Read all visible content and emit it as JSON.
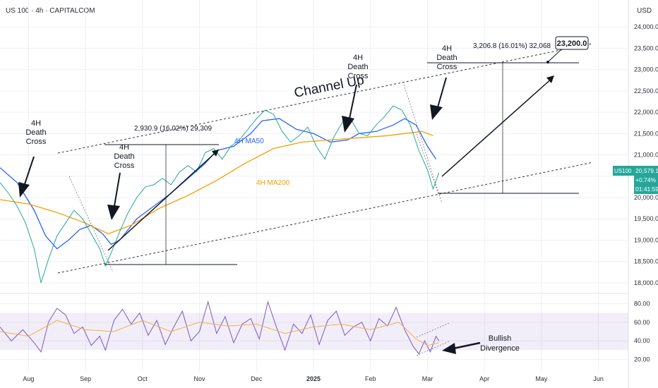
{
  "header": {
    "symbol_line": "US 100 · 4h · CAPITALCOM",
    "currency": "USD"
  },
  "price_tag": {
    "ticker": "US100",
    "price": "20,579.1",
    "change": "+0.74%",
    "countdown": "01:41:59"
  },
  "chart_data": [
    {
      "type": "line",
      "panel": "price",
      "y_ticks": [
        "24,000.0",
        "23,500.0",
        "23,000.0",
        "22,500.0",
        "22,000.0",
        "21,500.0",
        "21,000.0",
        "20,500.0",
        "20,000.0",
        "19,500.0",
        "19,000.0",
        "18,500.0",
        "18,000.0"
      ],
      "y_tick_values": [
        24000,
        23500,
        23000,
        22500,
        22000,
        21500,
        21000,
        20500,
        20000,
        19500,
        19000,
        18500,
        18000
      ],
      "ylim": [
        17850,
        24300
      ],
      "x_ticks": [
        "Aug",
        "Sep",
        "Oct",
        "Nov",
        "Dec",
        "2025",
        "Feb",
        "Mar",
        "Apr",
        "May",
        "Jun"
      ],
      "x_tick_index": [
        0.5,
        1.5,
        2.5,
        3.5,
        4.5,
        5.5,
        6.5,
        7.5,
        8.5,
        9.5,
        10.5
      ],
      "xlim": [
        0,
        11
      ],
      "series": [
        {
          "name": "4H MA50",
          "color": "#2962ff",
          "points": [
            [
              0,
              20700
            ],
            [
              0.3,
              20350
            ],
            [
              0.6,
              19700
            ],
            [
              0.8,
              19100
            ],
            [
              1.0,
              18800
            ],
            [
              1.2,
              19000
            ],
            [
              1.4,
              19250
            ],
            [
              1.6,
              19350
            ],
            [
              1.8,
              19150
            ],
            [
              1.95,
              18900
            ],
            [
              2.1,
              19000
            ],
            [
              2.4,
              19500
            ],
            [
              2.7,
              19800
            ],
            [
              3.0,
              20100
            ],
            [
              3.3,
              20450
            ],
            [
              3.6,
              20800
            ],
            [
              3.8,
              21100
            ],
            [
              4.1,
              21200
            ],
            [
              4.4,
              21500
            ],
            [
              4.6,
              21800
            ],
            [
              4.9,
              21850
            ],
            [
              5.2,
              21600
            ],
            [
              5.5,
              21500
            ],
            [
              5.8,
              21300
            ],
            [
              6.1,
              21350
            ],
            [
              6.3,
              21500
            ],
            [
              6.6,
              21550
            ],
            [
              6.9,
              21700
            ],
            [
              7.1,
              21850
            ],
            [
              7.3,
              21700
            ],
            [
              7.5,
              21200
            ],
            [
              7.65,
              20900
            ]
          ]
        },
        {
          "name": "4H MA200",
          "color": "#f59f00",
          "points": [
            [
              0,
              19950
            ],
            [
              0.5,
              19850
            ],
            [
              1.0,
              19650
            ],
            [
              1.5,
              19400
            ],
            [
              1.9,
              19150
            ],
            [
              2.3,
              19350
            ],
            [
              2.8,
              19750
            ],
            [
              3.3,
              20050
            ],
            [
              3.8,
              20400
            ],
            [
              4.3,
              20800
            ],
            [
              4.8,
              21150
            ],
            [
              5.3,
              21300
            ],
            [
              5.8,
              21350
            ],
            [
              6.3,
              21400
            ],
            [
              6.8,
              21450
            ],
            [
              7.1,
              21500
            ],
            [
              7.4,
              21550
            ],
            [
              7.6,
              21450
            ]
          ]
        },
        {
          "name": "Price",
          "color": "#26a69a",
          "points": [
            [
              0,
              20350
            ],
            [
              0.15,
              20100
            ],
            [
              0.3,
              19800
            ],
            [
              0.45,
              19400
            ],
            [
              0.6,
              18800
            ],
            [
              0.72,
              18000
            ],
            [
              0.85,
              18550
            ],
            [
              1.0,
              19100
            ],
            [
              1.15,
              19400
            ],
            [
              1.3,
              19700
            ],
            [
              1.45,
              19500
            ],
            [
              1.6,
              19150
            ],
            [
              1.75,
              18800
            ],
            [
              1.85,
              18400
            ],
            [
              1.95,
              18700
            ],
            [
              2.1,
              19200
            ],
            [
              2.25,
              19650
            ],
            [
              2.4,
              20000
            ],
            [
              2.55,
              20250
            ],
            [
              2.7,
              20300
            ],
            [
              2.85,
              20450
            ],
            [
              3.0,
              20300
            ],
            [
              3.15,
              20600
            ],
            [
              3.3,
              20750
            ],
            [
              3.45,
              20600
            ],
            [
              3.6,
              21050
            ],
            [
              3.75,
              21150
            ],
            [
              3.9,
              20900
            ],
            [
              4.05,
              21200
            ],
            [
              4.2,
              21350
            ],
            [
              4.35,
              21600
            ],
            [
              4.5,
              21850
            ],
            [
              4.65,
              22050
            ],
            [
              4.8,
              21950
            ],
            [
              4.95,
              21550
            ],
            [
              5.1,
              21300
            ],
            [
              5.25,
              21450
            ],
            [
              5.4,
              21650
            ],
            [
              5.55,
              21200
            ],
            [
              5.7,
              20900
            ],
            [
              5.85,
              21400
            ],
            [
              6.0,
              21750
            ],
            [
              6.15,
              21850
            ],
            [
              6.3,
              21500
            ],
            [
              6.45,
              21450
            ],
            [
              6.6,
              21700
            ],
            [
              6.75,
              21900
            ],
            [
              6.9,
              22150
            ],
            [
              7.05,
              22050
            ],
            [
              7.2,
              21700
            ],
            [
              7.35,
              21100
            ],
            [
              7.5,
              20650
            ],
            [
              7.6,
              20200
            ],
            [
              7.7,
              20580
            ]
          ]
        }
      ]
    },
    {
      "type": "line",
      "panel": "rsi",
      "y_ticks": [
        "80.00",
        "60.00",
        "40.00",
        "20.00"
      ],
      "y_tick_values": [
        80,
        60,
        40,
        20
      ],
      "ylim": [
        12,
        88
      ],
      "band": [
        30,
        70
      ],
      "series": [
        {
          "name": "RSI",
          "color": "#7e57c2",
          "points": [
            [
              0,
              55
            ],
            [
              0.2,
              40
            ],
            [
              0.4,
              52
            ],
            [
              0.6,
              38
            ],
            [
              0.72,
              28
            ],
            [
              0.85,
              60
            ],
            [
              1.0,
              75
            ],
            [
              1.15,
              68
            ],
            [
              1.3,
              48
            ],
            [
              1.45,
              55
            ],
            [
              1.6,
              35
            ],
            [
              1.75,
              45
            ],
            [
              1.85,
              30
            ],
            [
              2.0,
              62
            ],
            [
              2.15,
              74
            ],
            [
              2.3,
              58
            ],
            [
              2.45,
              70
            ],
            [
              2.6,
              46
            ],
            [
              2.75,
              62
            ],
            [
              2.9,
              36
            ],
            [
              3.05,
              55
            ],
            [
              3.2,
              72
            ],
            [
              3.35,
              40
            ],
            [
              3.5,
              50
            ],
            [
              3.65,
              82
            ],
            [
              3.8,
              48
            ],
            [
              3.95,
              66
            ],
            [
              4.1,
              38
            ],
            [
              4.25,
              58
            ],
            [
              4.4,
              64
            ],
            [
              4.55,
              42
            ],
            [
              4.7,
              82
            ],
            [
              4.85,
              55
            ],
            [
              5.0,
              30
            ],
            [
              5.15,
              58
            ],
            [
              5.3,
              48
            ],
            [
              5.45,
              68
            ],
            [
              5.6,
              36
            ],
            [
              5.75,
              62
            ],
            [
              5.9,
              72
            ],
            [
              6.05,
              46
            ],
            [
              6.2,
              55
            ],
            [
              6.35,
              60
            ],
            [
              6.5,
              40
            ],
            [
              6.65,
              64
            ],
            [
              6.8,
              56
            ],
            [
              6.95,
              76
            ],
            [
              7.1,
              52
            ],
            [
              7.25,
              34
            ],
            [
              7.35,
              26
            ],
            [
              7.45,
              40
            ],
            [
              7.55,
              28
            ],
            [
              7.65,
              45
            ],
            [
              7.7,
              40
            ]
          ]
        },
        {
          "name": "RSI MA",
          "color": "#f5b13d",
          "points": [
            [
              0,
              50
            ],
            [
              0.5,
              45
            ],
            [
              1.0,
              62
            ],
            [
              1.5,
              52
            ],
            [
              2.0,
              50
            ],
            [
              2.5,
              62
            ],
            [
              3.0,
              50
            ],
            [
              3.5,
              60
            ],
            [
              4.0,
              56
            ],
            [
              4.5,
              58
            ],
            [
              5.0,
              48
            ],
            [
              5.5,
              55
            ],
            [
              6.0,
              58
            ],
            [
              6.5,
              52
            ],
            [
              7.0,
              60
            ],
            [
              7.3,
              42
            ],
            [
              7.5,
              35
            ],
            [
              7.7,
              38
            ]
          ]
        }
      ]
    }
  ],
  "annotations": {
    "channel_label": "Channel Up",
    "ma50_label": "4H MA50",
    "ma200_label": "4H MA200",
    "death_cross_1": [
      "4H",
      "Death",
      "Cross"
    ],
    "death_cross_2": [
      "4H",
      "Death",
      "Cross"
    ],
    "death_cross_3": [
      "4H",
      "Death",
      "Cross"
    ],
    "death_cross_4": [
      "4H",
      "Death",
      "Cross"
    ],
    "measure_1": "2,930.9 (16.02%) 29,309",
    "measure_2": "3,206.8 (16.01%) 32,068",
    "target_label": "23,200.0",
    "divergence_label": [
      "Bullish",
      "Divergence"
    ]
  }
}
